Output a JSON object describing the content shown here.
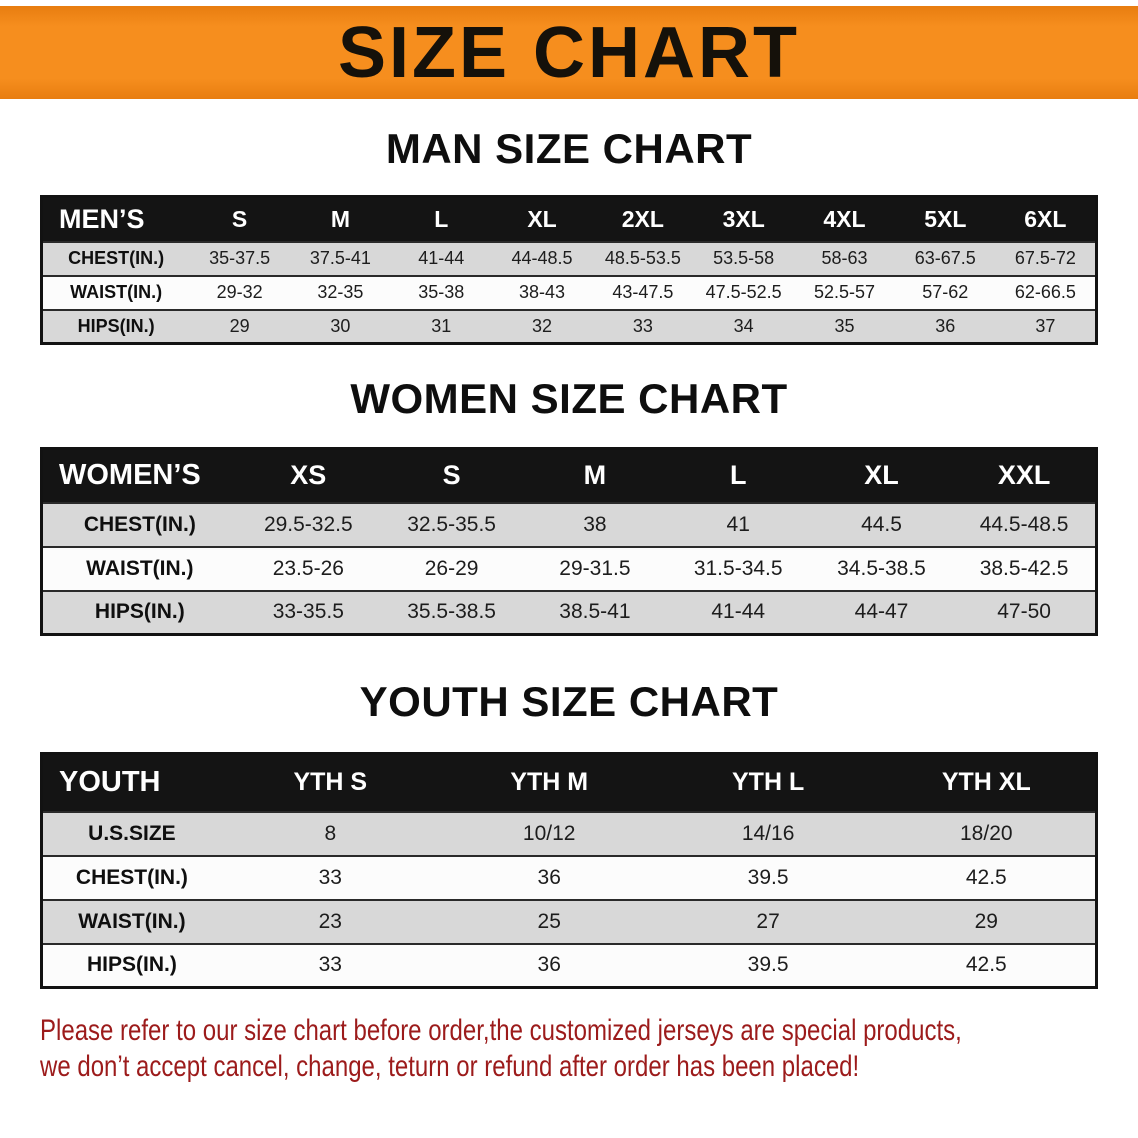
{
  "banner": {
    "title": "SIZE CHART"
  },
  "colors": {
    "banner_orange": "#F68E1E",
    "header_black": "#141414",
    "row_gray": "#D8D8D8",
    "note_red": "#9C1B1B"
  },
  "sections": [
    {
      "title": "MAN SIZE CHART",
      "table": {
        "label": "MEN’S",
        "columns": [
          "S",
          "M",
          "L",
          "XL",
          "2XL",
          "3XL",
          "4XL",
          "5XL",
          "6XL"
        ],
        "rows": [
          {
            "label": "CHEST(IN.)",
            "values": [
              "35-37.5",
              "37.5-41",
              "41-44",
              "44-48.5",
              "48.5-53.5",
              "53.5-58",
              "58-63",
              "63-67.5",
              "67.5-72"
            ]
          },
          {
            "label": "WAIST(IN.)",
            "values": [
              "29-32",
              "32-35",
              "35-38",
              "38-43",
              "43-47.5",
              "47.5-52.5",
              "52.5-57",
              "57-62",
              "62-66.5"
            ]
          },
          {
            "label": "HIPS(IN.)",
            "values": [
              "29",
              "30",
              "31",
              "32",
              "33",
              "34",
              "35",
              "36",
              "37"
            ]
          }
        ]
      }
    },
    {
      "title": "WOMEN SIZE CHART",
      "table": {
        "label": "WOMEN’S",
        "columns": [
          "XS",
          "S",
          "M",
          "L",
          "XL",
          "XXL"
        ],
        "rows": [
          {
            "label": "CHEST(IN.)",
            "values": [
              "29.5-32.5",
              "32.5-35.5",
              "38",
              "41",
              "44.5",
              "44.5-48.5"
            ]
          },
          {
            "label": "WAIST(IN.)",
            "values": [
              "23.5-26",
              "26-29",
              "29-31.5",
              "31.5-34.5",
              "34.5-38.5",
              "38.5-42.5"
            ]
          },
          {
            "label": "HIPS(IN.)",
            "values": [
              "33-35.5",
              "35.5-38.5",
              "38.5-41",
              "41-44",
              "44-47",
              "47-50"
            ]
          }
        ]
      }
    },
    {
      "title": "YOUTH SIZE CHART",
      "table": {
        "label": "YOUTH",
        "columns": [
          "YTH S",
          "YTH M",
          "YTH L",
          "YTH XL"
        ],
        "rows": [
          {
            "label": "U.S.SIZE",
            "values": [
              "8",
              "10/12",
              "14/16",
              "18/20"
            ]
          },
          {
            "label": "CHEST(IN.)",
            "values": [
              "33",
              "36",
              "39.5",
              "42.5"
            ]
          },
          {
            "label": "WAIST(IN.)",
            "values": [
              "23",
              "25",
              "27",
              "29"
            ]
          },
          {
            "label": "HIPS(IN.)",
            "values": [
              "33",
              "36",
              "39.5",
              "42.5"
            ]
          }
        ]
      }
    }
  ],
  "footer": {
    "line1": "Please refer to our size chart before order,the customized jerseys are special products,",
    "line2": "we don’t accept cancel, change, teturn or refund after order has been placed!"
  }
}
